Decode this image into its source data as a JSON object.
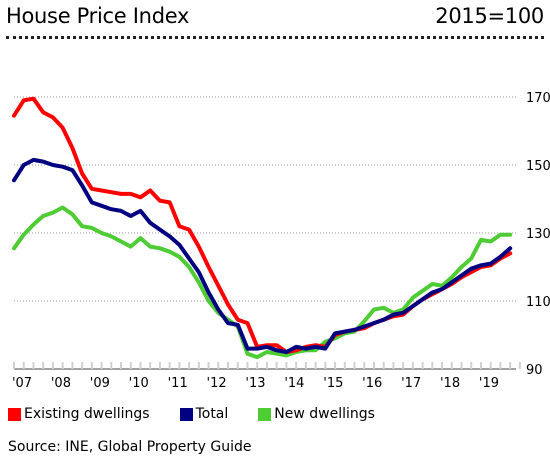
{
  "header": {
    "title": "House Price Index",
    "unit": "2015=100"
  },
  "source": "Source: INE, Global Property Guide",
  "chart_data": {
    "type": "line",
    "title": "House Price Index",
    "xlabel": "",
    "ylabel": "",
    "ylim": [
      90,
      175
    ],
    "yticks": [
      90,
      110,
      130,
      150,
      170
    ],
    "xlim": [
      2007.0,
      2019.9
    ],
    "xtick_labels": [
      "'07",
      "'08",
      "'09",
      "'10",
      "'11",
      "'12",
      "'13",
      "'14",
      "'15",
      "'16",
      "'17",
      "'18",
      "'19"
    ],
    "grid": "horizontal dotted",
    "legend_position": "bottom",
    "x": [
      2007.0,
      2007.25,
      2007.5,
      2007.75,
      2008.0,
      2008.25,
      2008.5,
      2008.75,
      2009.0,
      2009.25,
      2009.5,
      2009.75,
      2010.0,
      2010.25,
      2010.5,
      2010.75,
      2011.0,
      2011.25,
      2011.5,
      2011.75,
      2012.0,
      2012.25,
      2012.5,
      2012.75,
      2013.0,
      2013.25,
      2013.5,
      2013.75,
      2014.0,
      2014.25,
      2014.5,
      2014.75,
      2015.0,
      2015.25,
      2015.5,
      2015.75,
      2016.0,
      2016.25,
      2016.5,
      2016.75,
      2017.0,
      2017.25,
      2017.5,
      2017.75,
      2018.0,
      2018.25,
      2018.5,
      2018.75,
      2019.0,
      2019.25,
      2019.5,
      2019.75
    ],
    "series": [
      {
        "name": "Existing dwellings",
        "color": "#ff0000",
        "values": [
          164.5,
          169.0,
          169.5,
          165.5,
          164.0,
          161.0,
          155.0,
          147.5,
          143.0,
          142.5,
          142.0,
          141.5,
          141.5,
          140.5,
          142.5,
          139.5,
          139.0,
          132.0,
          131.0,
          126.0,
          120.0,
          114.5,
          109.0,
          104.5,
          103.5,
          96.5,
          97.0,
          97.0,
          95.0,
          95.5,
          96.5,
          97.0,
          96.5,
          100.0,
          101.0,
          101.5,
          102.0,
          103.5,
          104.5,
          105.5,
          106.0,
          108.5,
          110.5,
          112.0,
          113.5,
          115.0,
          117.0,
          118.5,
          120.0,
          120.5,
          122.5,
          124.0
        ]
      },
      {
        "name": "Total",
        "color": "#000080",
        "values": [
          145.5,
          150.0,
          151.5,
          151.0,
          150.0,
          149.5,
          148.5,
          144.0,
          139.0,
          138.0,
          137.0,
          136.5,
          135.0,
          136.5,
          133.0,
          131.0,
          129.0,
          126.5,
          122.5,
          118.5,
          112.5,
          107.5,
          103.5,
          103.0,
          96.0,
          96.0,
          96.5,
          95.5,
          95.0,
          96.5,
          96.0,
          96.5,
          96.0,
          100.5,
          101.0,
          101.5,
          102.5,
          103.5,
          104.5,
          106.0,
          106.5,
          108.5,
          110.5,
          112.5,
          113.5,
          115.5,
          117.5,
          119.5,
          120.5,
          121.0,
          123.0,
          125.5
        ]
      },
      {
        "name": "New dwellings",
        "color": "#4ecc33",
        "values": [
          125.5,
          129.5,
          132.5,
          135.0,
          136.0,
          137.5,
          135.5,
          132.0,
          131.5,
          130.0,
          129.0,
          127.5,
          126.0,
          128.5,
          126.0,
          125.5,
          124.5,
          123.0,
          120.0,
          115.5,
          110.0,
          106.5,
          104.5,
          102.5,
          94.5,
          93.5,
          95.0,
          94.5,
          94.0,
          95.0,
          95.5,
          95.5,
          98.0,
          99.0,
          100.5,
          101.0,
          104.0,
          107.5,
          108.0,
          106.5,
          107.5,
          111.0,
          113.0,
          115.0,
          114.5,
          117.0,
          120.0,
          122.5,
          128.0,
          127.5,
          129.5,
          129.5
        ]
      }
    ]
  }
}
